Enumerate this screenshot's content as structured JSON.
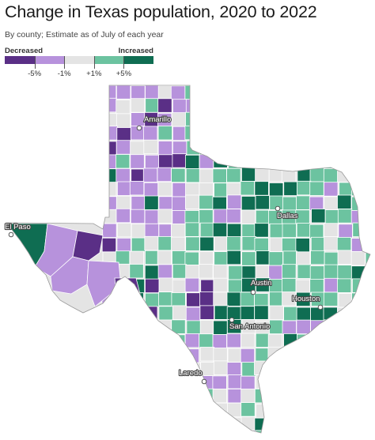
{
  "title": "Change in Texas population, 2020 to 2022",
  "subtitle": "By county; Estimate as of July of each year",
  "legend": {
    "left_label": "Decreased",
    "right_label": "Increased",
    "ticks": [
      "-5%",
      "-1%",
      "+1%",
      "+5%"
    ],
    "bins": [
      {
        "range": "< -5%",
        "color": "#5a2f86"
      },
      {
        "range": "-5% to -1%",
        "color": "#b792dc"
      },
      {
        "range": "-1% to +1%",
        "color": "#e4e4e4"
      },
      {
        "range": "+1% to +5%",
        "color": "#6cc3a0"
      },
      {
        "range": "> +5%",
        "color": "#0f6d52"
      }
    ]
  },
  "cities": [
    {
      "name": "Amarillo"
    },
    {
      "name": "El Paso"
    },
    {
      "name": "Dallas"
    },
    {
      "name": "Austin"
    },
    {
      "name": "Houston"
    },
    {
      "name": "San Antonio"
    },
    {
      "name": "Laredo"
    }
  ]
}
